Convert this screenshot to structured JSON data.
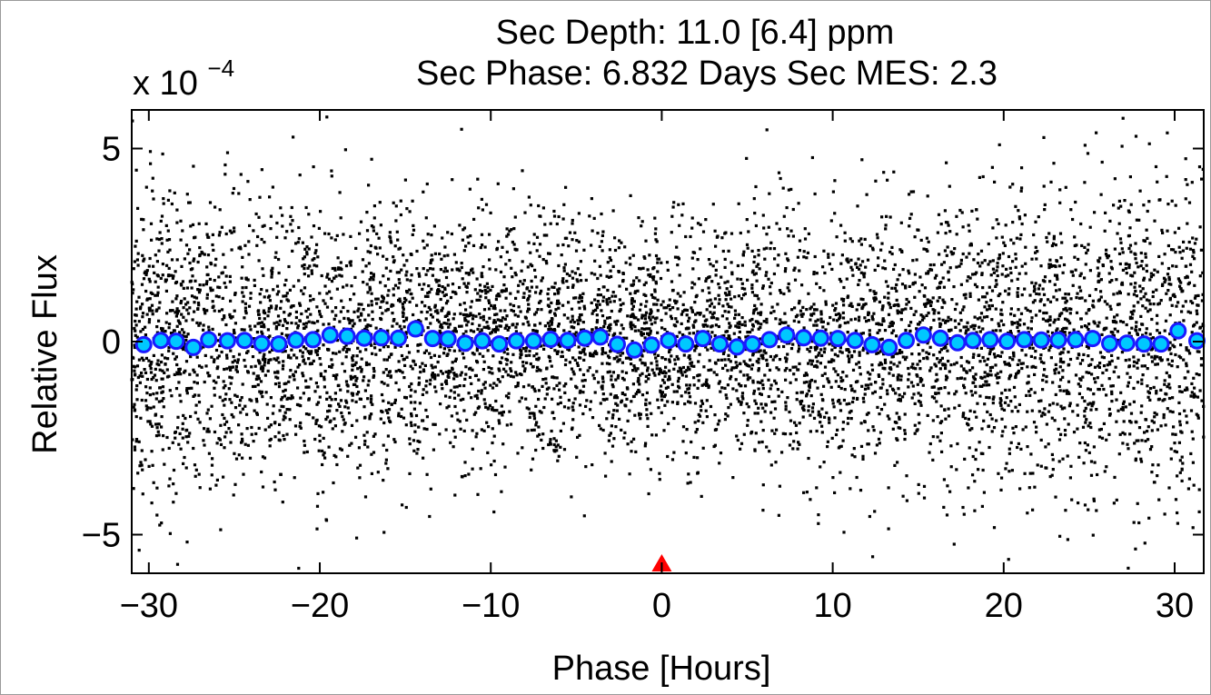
{
  "chart_data": {
    "type": "scatter",
    "title_lines": [
      "Sec Depth: 11.0 [6.4] ppm",
      "Sec Phase: 6.832 Days   Sec MES: 2.3"
    ],
    "xlabel": "Phase [Hours]",
    "ylabel": "Relative Flux",
    "y_multiplier_label": "x 10",
    "y_multiplier_exponent": "−4",
    "xlim": [
      -31,
      31.7
    ],
    "ylim": [
      -6.0,
      6.0
    ],
    "x_ticks": [
      {
        "value": -30,
        "label": "−30"
      },
      {
        "value": -20,
        "label": "−20"
      },
      {
        "value": -10,
        "label": "−10"
      },
      {
        "value": 0,
        "label": "0"
      },
      {
        "value": 10,
        "label": "10"
      },
      {
        "value": 20,
        "label": "20"
      },
      {
        "value": 30,
        "label": "30"
      }
    ],
    "y_ticks": [
      {
        "value": -5,
        "label": "−5"
      },
      {
        "value": 0,
        "label": "0"
      },
      {
        "value": 5,
        "label": "5"
      }
    ],
    "grid": false,
    "raw_points": {
      "description_color": "#000000",
      "noise_sigma_center": 1.4,
      "noise_sigma_edge": 2.1
    },
    "binned_series": {
      "marker_fill": "#00c8ff",
      "marker_edge": "#1a1aff",
      "x": [
        -30.3,
        -29.3,
        -28.4,
        -27.4,
        -26.5,
        -25.4,
        -24.4,
        -23.4,
        -22.4,
        -21.4,
        -20.4,
        -19.4,
        -18.4,
        -17.4,
        -16.4,
        -15.4,
        -14.4,
        -13.4,
        -12.5,
        -11.5,
        -10.5,
        -9.5,
        -8.5,
        -7.5,
        -6.5,
        -5.5,
        -4.5,
        -3.6,
        -2.6,
        -1.6,
        -0.6,
        0.4,
        1.4,
        2.4,
        3.4,
        4.4,
        5.3,
        6.3,
        7.3,
        8.3,
        9.3,
        10.3,
        11.3,
        12.3,
        13.3,
        14.3,
        15.3,
        16.3,
        17.3,
        18.2,
        19.2,
        20.2,
        21.2,
        22.2,
        23.2,
        24.2,
        25.2,
        26.2,
        27.2,
        28.2,
        29.2,
        30.2,
        31.3
      ],
      "y": [
        -0.08,
        0.03,
        0.01,
        -0.15,
        0.05,
        0.02,
        0.03,
        -0.05,
        -0.06,
        0.04,
        0.05,
        0.17,
        0.14,
        0.09,
        0.1,
        0.09,
        0.33,
        0.08,
        0.07,
        -0.04,
        0.02,
        -0.06,
        0.02,
        0.02,
        0.06,
        0.03,
        0.09,
        0.12,
        -0.07,
        -0.22,
        -0.09,
        0.03,
        -0.06,
        0.08,
        -0.06,
        -0.14,
        -0.06,
        0.05,
        0.17,
        0.1,
        0.09,
        0.08,
        0.03,
        -0.08,
        -0.15,
        0.03,
        0.17,
        0.09,
        -0.03,
        0.03,
        0.05,
        0.01,
        0.05,
        0.04,
        0.04,
        0.05,
        0.08,
        -0.05,
        -0.04,
        -0.06,
        -0.06,
        0.28,
        0.02
      ]
    },
    "event_marker": {
      "x": 0,
      "color": "#ff0000",
      "shape": "triangle-up"
    }
  }
}
